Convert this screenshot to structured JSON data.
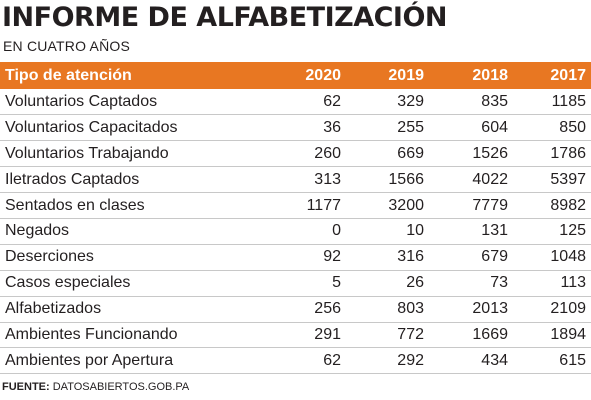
{
  "title": "INFORME DE ALFABETIZACIÓN",
  "subtitle": "EN CUATRO AÑOS",
  "source": {
    "label": "FUENTE:",
    "text": "DATOSABIERTOS.GOB.PA"
  },
  "colors": {
    "header_bg": "#e87722",
    "header_text": "#ffffff",
    "text": "#231f20",
    "row_divider": "#c8c8c8"
  },
  "chart_data": {
    "type": "table",
    "title": "INFORME DE ALFABETIZACIÓN",
    "subtitle": "EN CUATRO AÑOS",
    "columns": [
      "Tipo de atención",
      "2020",
      "2019",
      "2018",
      "2017"
    ],
    "rows": [
      {
        "label": "Voluntarios Captados",
        "values": [
          62,
          329,
          835,
          1185
        ]
      },
      {
        "label": "Voluntarios Capacitados",
        "values": [
          36,
          255,
          604,
          850
        ]
      },
      {
        "label": "Voluntarios Trabajando",
        "values": [
          260,
          669,
          1526,
          1786
        ]
      },
      {
        "label": "Iletrados Captados",
        "values": [
          313,
          1566,
          4022,
          5397
        ]
      },
      {
        "label": "Sentados en clases",
        "values": [
          1177,
          3200,
          7779,
          8982
        ]
      },
      {
        "label": "Negados",
        "values": [
          0,
          10,
          131,
          125
        ]
      },
      {
        "label": "Deserciones",
        "values": [
          92,
          316,
          679,
          1048
        ]
      },
      {
        "label": "Casos especiales",
        "values": [
          5,
          26,
          73,
          113
        ]
      },
      {
        "label": "Alfabetizados",
        "values": [
          256,
          803,
          2013,
          2109
        ]
      },
      {
        "label": "Ambientes Funcionando",
        "values": [
          291,
          772,
          1669,
          1894
        ]
      },
      {
        "label": "Ambientes por Apertura",
        "values": [
          62,
          292,
          434,
          615
        ]
      }
    ]
  }
}
